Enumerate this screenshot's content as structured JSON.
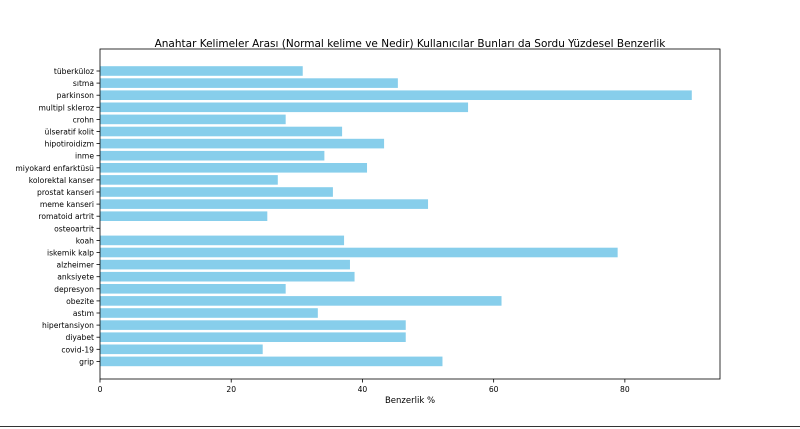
{
  "chart_data": {
    "type": "bar",
    "orientation": "horizontal",
    "title": "Anahtar Kelimeler Arası (Normal kelime ve Nedir) Kullanıcılar Bunları da Sordu Yüzdesel Benzerlik",
    "xlabel": "Benzerlik %",
    "ylabel": "",
    "xlim": [
      0,
      94.5
    ],
    "xticks": [
      0,
      20,
      40,
      60,
      80
    ],
    "bar_color": "#87CEEB",
    "grid": false,
    "legend": "none",
    "categories": [
      "tüberküloz",
      "sıtma",
      "parkinson",
      "multipl skleroz",
      "crohn",
      "ülseratif kolit",
      "hipotiroidizm",
      "inme",
      "miyokard enfarktüsü",
      "kolorektal kanser",
      "prostat kanseri",
      "meme kanseri",
      "romatoid artrit",
      "osteoartrit",
      "koah",
      "iskemik kalp",
      "alzheimer",
      "anksiyete",
      "depresyon",
      "obezite",
      "astım",
      "hipertansiyon",
      "diyabet",
      "covid-19",
      "grip"
    ],
    "values": [
      30.9,
      45.4,
      90.2,
      56.1,
      28.3,
      36.9,
      43.3,
      34.2,
      40.7,
      27.1,
      35.5,
      50.0,
      25.5,
      0,
      37.2,
      78.9,
      38.1,
      38.8,
      28.3,
      61.2,
      33.2,
      46.6,
      46.6,
      24.8,
      52.2
    ]
  }
}
